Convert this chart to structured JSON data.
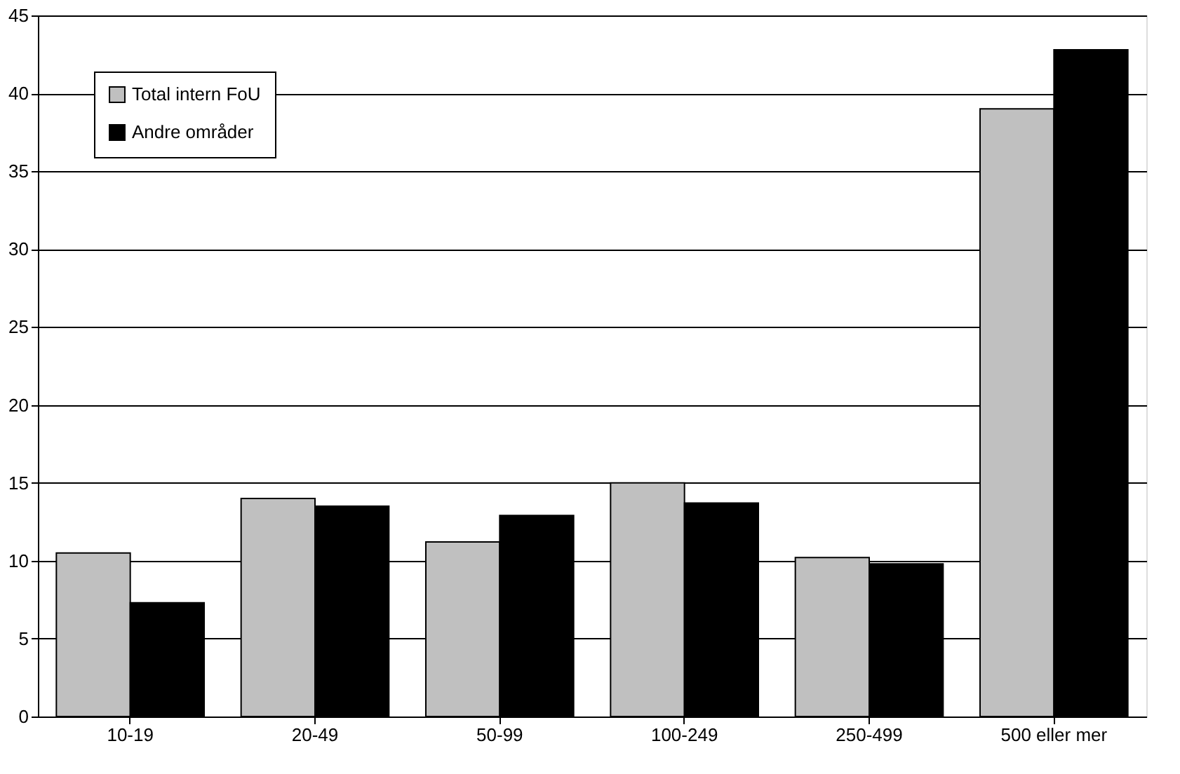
{
  "chart_data": {
    "type": "bar",
    "categories": [
      "10-19",
      "20-49",
      "50-99",
      "100-249",
      "250-499",
      "500 eller mer"
    ],
    "series": [
      {
        "name": "Total intern FoU",
        "color": "#c0c0c0",
        "values": [
          10.5,
          14.0,
          11.2,
          15.0,
          10.2,
          39.0
        ]
      },
      {
        "name": "Andre områder",
        "color": "#000000",
        "values": [
          7.3,
          13.5,
          12.9,
          13.7,
          9.8,
          42.8
        ]
      }
    ],
    "ylim": [
      0,
      45
    ],
    "yticks": [
      0,
      5,
      10,
      15,
      20,
      25,
      30,
      35,
      40,
      45
    ],
    "grid": "y",
    "legend": "top left"
  }
}
